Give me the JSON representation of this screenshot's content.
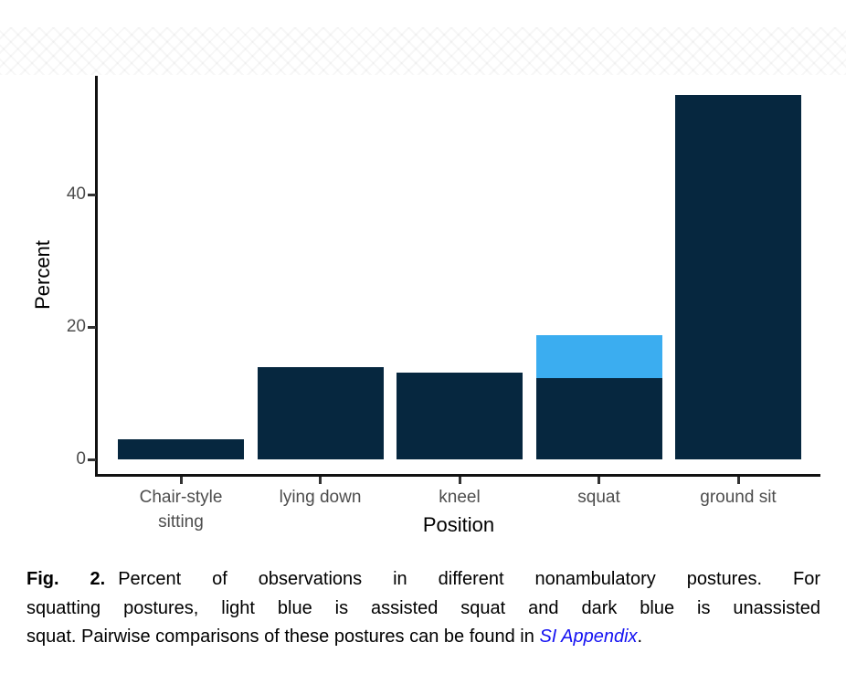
{
  "figure": {
    "caption": {
      "label": "Fig. 2.",
      "line1": "Percent of observations in different nonambulatory postures. For",
      "line2": "squatting postures, light blue is assisted squat and dark blue is unassisted",
      "line3_before_link": "squat. Pairwise comparisons of these postures can be found in ",
      "link_text": "SI Appendix",
      "line3_after_link": "."
    }
  },
  "chart_data": {
    "type": "bar",
    "stacked": true,
    "title": "",
    "xlabel": "Position",
    "ylabel": "Percent",
    "categories": [
      "Chair-style sitting",
      "lying down",
      "kneel",
      "squat",
      "ground sit"
    ],
    "category_label_lines": [
      [
        "Chair-style",
        "sitting"
      ],
      [
        "lying down"
      ],
      [
        "kneel"
      ],
      [
        "squat"
      ],
      [
        "ground sit"
      ]
    ],
    "series": [
      {
        "name": "dark blue (unassisted squat / posture total)",
        "color": "#06273F",
        "values": [
          3.0,
          13.9,
          13.1,
          12.3,
          55.0
        ]
      },
      {
        "name": "light blue (assisted squat)",
        "color": "#3BADF0",
        "values": [
          0,
          0,
          0,
          6.5,
          0
        ]
      }
    ],
    "y_ticks": [
      0,
      20,
      40
    ],
    "ylim": [
      0,
      58
    ],
    "grid": false,
    "legend": "none"
  },
  "colors": {
    "bar_dark": "#06273F",
    "bar_light": "#3BADF0",
    "axis_text": "#4d4d4d",
    "axis_line": "#111111",
    "caption_text": "#000000",
    "link_blue": "#1512F2"
  }
}
